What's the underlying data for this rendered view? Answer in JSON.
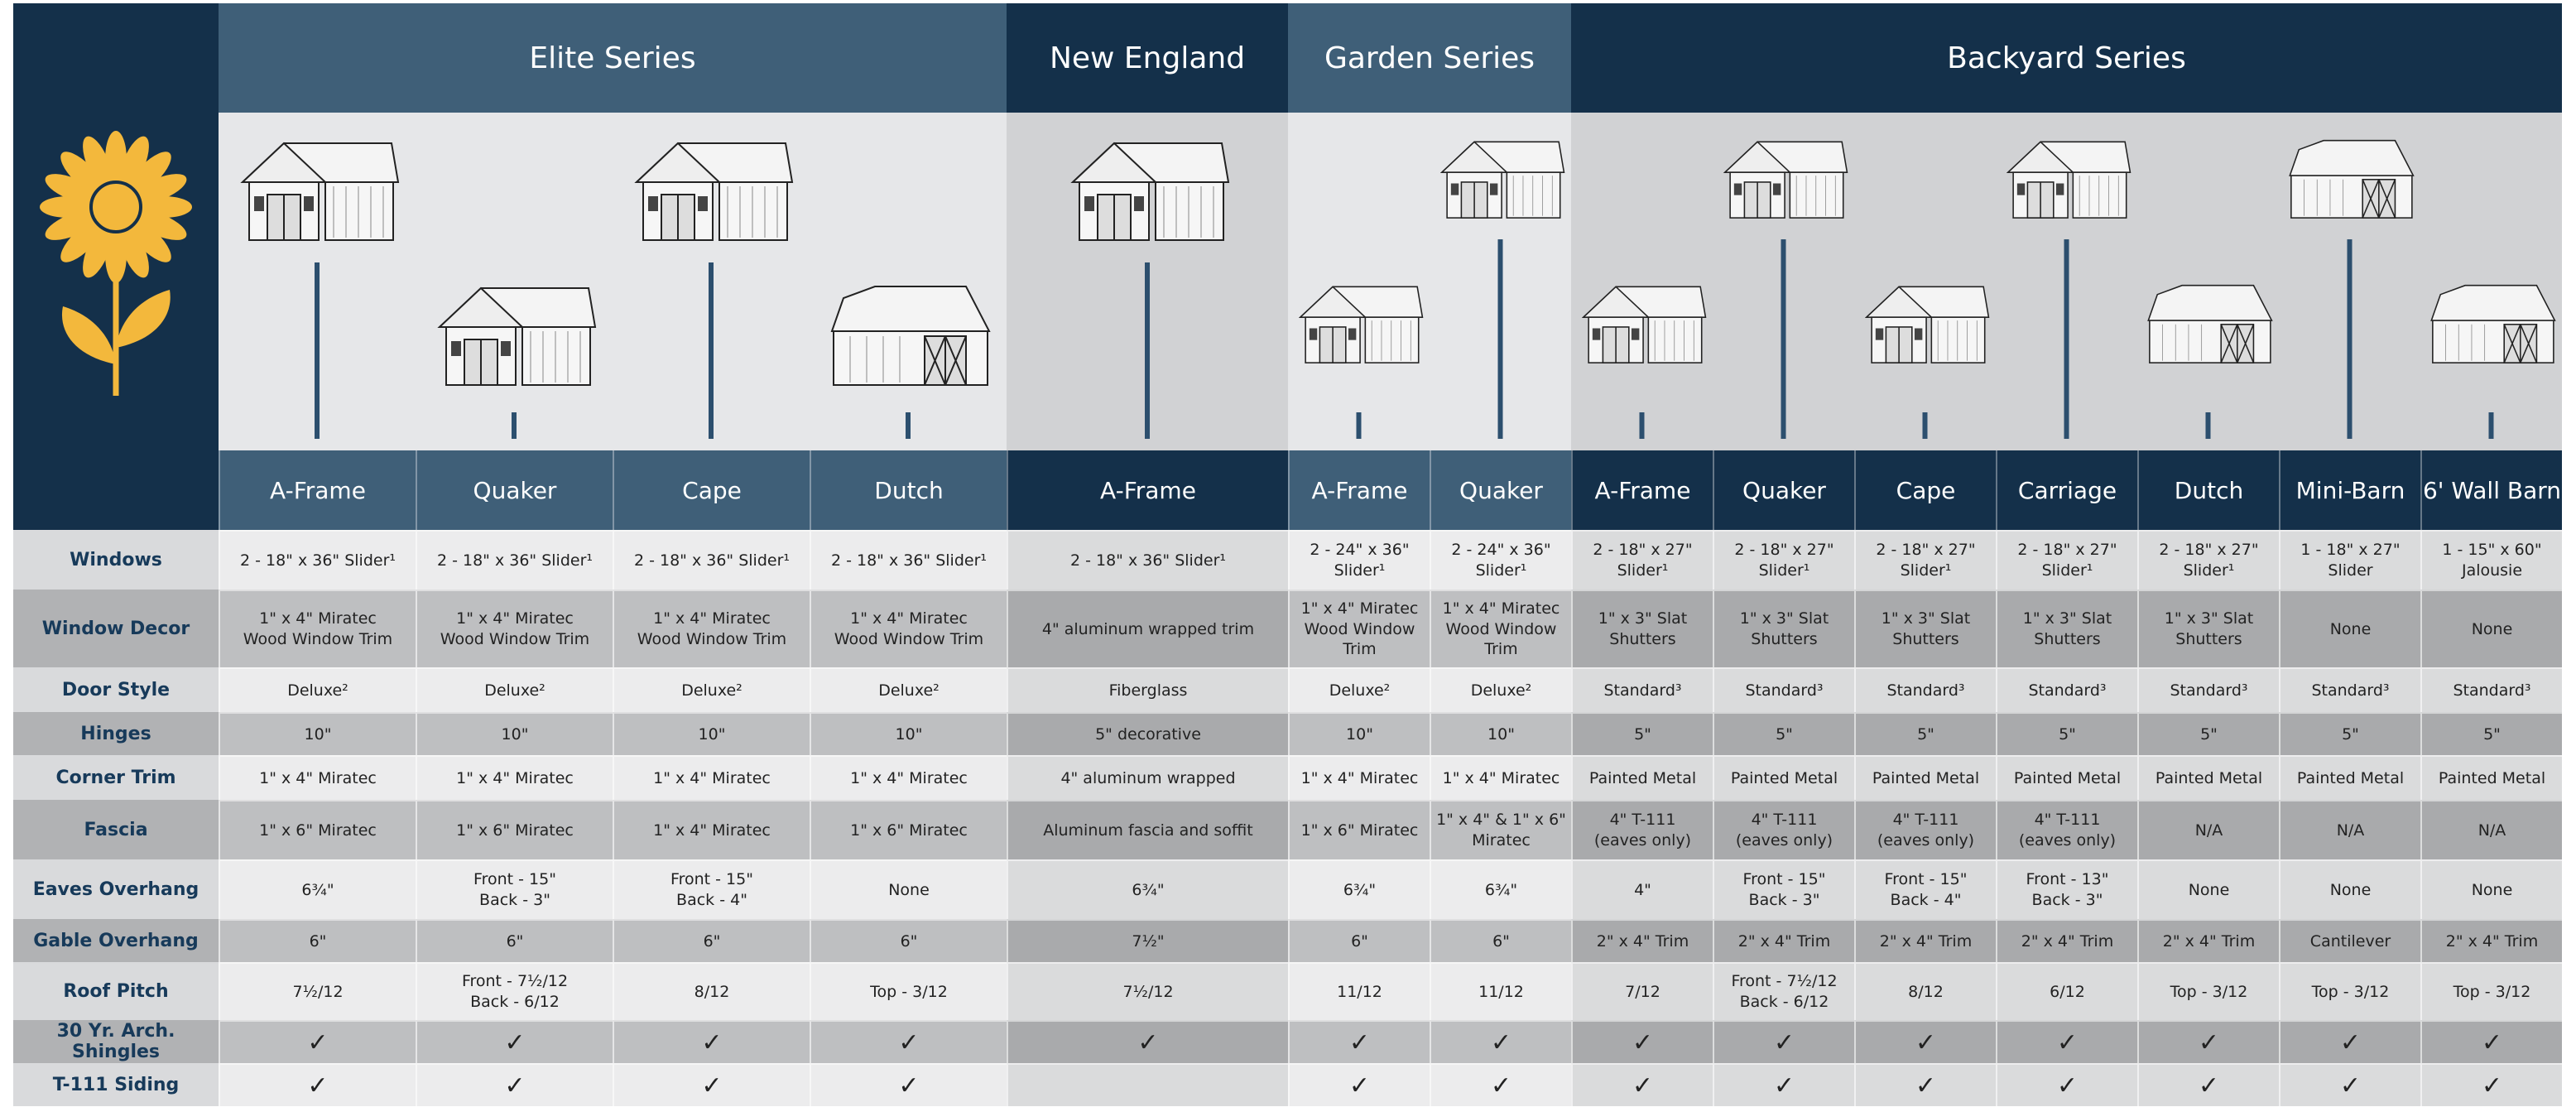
{
  "header": {
    "series": [
      {
        "name": "Elite Series",
        "models": [
          "A-Frame",
          "Quaker",
          "Cape",
          "Dutch"
        ]
      },
      {
        "name": "New England",
        "models": [
          "A-Frame"
        ]
      },
      {
        "name": "Garden Series",
        "models": [
          "A-Frame",
          "Quaker"
        ]
      },
      {
        "name": "Backyard Series",
        "models": [
          "A-Frame",
          "Quaker",
          "Cape",
          "Carriage",
          "Dutch",
          "Mini-Barn",
          "6' Wall Barn"
        ]
      }
    ]
  },
  "rows": [
    {
      "label": "Windows",
      "cells": [
        "2 - 18\" x 36\" Slider¹",
        "2 - 18\" x 36\" Slider¹",
        "2 - 18\" x 36\" Slider¹",
        "2 - 18\" x 36\" Slider¹",
        "2 - 18\" x 36\" Slider¹",
        "2 - 24\" x 36\"\nSlider¹",
        "2 - 24\" x 36\"\nSlider¹",
        "2 - 18\" x 27\"\nSlider¹",
        "2 - 18\" x 27\"\nSlider¹",
        "2 - 18\" x 27\"\nSlider¹",
        "2 - 18\" x 27\"\nSlider¹",
        "2 - 18\" x 27\"\nSlider¹",
        "1 - 18\" x 27\"\nSlider",
        "1 - 15\" x 60\"\nJalousie"
      ]
    },
    {
      "label": "Window Decor",
      "cells": [
        "1\" x 4\" Miratec\nWood Window Trim",
        "1\" x 4\" Miratec\nWood Window Trim",
        "1\" x 4\" Miratec\nWood Window Trim",
        "1\" x 4\" Miratec\nWood Window Trim",
        "4\" aluminum wrapped trim",
        "1\" x 4\" Miratec\nWood Window\nTrim",
        "1\" x 4\" Miratec\nWood Window\nTrim",
        "1\" x 3\" Slat\nShutters",
        "1\" x 3\" Slat\nShutters",
        "1\" x 3\" Slat\nShutters",
        "1\" x 3\" Slat\nShutters",
        "1\" x 3\" Slat\nShutters",
        "None",
        "None"
      ]
    },
    {
      "label": "Door Style",
      "cells": [
        "Deluxe²",
        "Deluxe²",
        "Deluxe²",
        "Deluxe²",
        "Fiberglass",
        "Deluxe²",
        "Deluxe²",
        "Standard³",
        "Standard³",
        "Standard³",
        "Standard³",
        "Standard³",
        "Standard³",
        "Standard³"
      ]
    },
    {
      "label": "Hinges",
      "cells": [
        "10\"",
        "10\"",
        "10\"",
        "10\"",
        "5\" decorative",
        "10\"",
        "10\"",
        "5\"",
        "5\"",
        "5\"",
        "5\"",
        "5\"",
        "5\"",
        "5\""
      ]
    },
    {
      "label": "Corner Trim",
      "cells": [
        "1\" x 4\" Miratec",
        "1\" x 4\" Miratec",
        "1\" x 4\" Miratec",
        "1\" x 4\" Miratec",
        "4\" aluminum wrapped",
        "1\" x 4\" Miratec",
        "1\" x 4\" Miratec",
        "Painted Metal",
        "Painted Metal",
        "Painted Metal",
        "Painted Metal",
        "Painted Metal",
        "Painted Metal",
        "Painted Metal"
      ]
    },
    {
      "label": "Fascia",
      "cells": [
        "1\" x 6\" Miratec",
        "1\" x 6\" Miratec",
        "1\" x 4\" Miratec",
        "1\" x 6\" Miratec",
        "Aluminum fascia and soffit",
        "1\" x 6\" Miratec",
        "1\" x 4\" & 1\" x 6\"\nMiratec",
        "4\" T-111\n(eaves only)",
        "4\" T-111\n(eaves only)",
        "4\" T-111\n(eaves only)",
        "4\" T-111\n(eaves only)",
        "N/A",
        "N/A",
        "N/A"
      ]
    },
    {
      "label": "Eaves Overhang",
      "cells": [
        "6¾\"",
        "Front - 15\"\nBack - 3\"",
        "Front - 15\"\nBack - 4\"",
        "None",
        "6¾\"",
        "6¾\"",
        "6¾\"",
        "4\"",
        "Front - 15\"\nBack - 3\"",
        "Front - 15\"\nBack - 4\"",
        "Front - 13\"\nBack - 3\"",
        "None",
        "None",
        "None"
      ]
    },
    {
      "label": "Gable Overhang",
      "cells": [
        "6\"",
        "6\"",
        "6\"",
        "6\"",
        "7½\"",
        "6\"",
        "6\"",
        "2\" x 4\" Trim",
        "2\" x 4\" Trim",
        "2\" x 4\" Trim",
        "2\" x 4\" Trim",
        "2\" x 4\" Trim",
        "Cantilever",
        "2\" x 4\" Trim"
      ]
    },
    {
      "label": "Roof Pitch",
      "cells": [
        "7½/12",
        "Front - 7½/12\nBack - 6/12",
        "8/12",
        "Top - 3/12",
        "7½/12",
        "11/12",
        "11/12",
        "7/12",
        "Front - 7½/12\nBack - 6/12",
        "8/12",
        "6/12",
        "Top - 3/12",
        "Top - 3/12",
        "Top - 3/12"
      ]
    },
    {
      "label": "30 Yr. Arch. Shingles",
      "cells": [
        "✓",
        "✓",
        "✓",
        "✓",
        "✓",
        "✓",
        "✓",
        "✓",
        "✓",
        "✓",
        "✓",
        "✓",
        "✓",
        "✓"
      ]
    },
    {
      "label": "T-111 Siding",
      "cells": [
        "✓",
        "✓",
        "✓",
        "✓",
        null,
        "✓",
        "✓",
        "✓",
        "✓",
        "✓",
        "✓",
        "✓",
        "✓",
        "✓"
      ]
    }
  ]
}
